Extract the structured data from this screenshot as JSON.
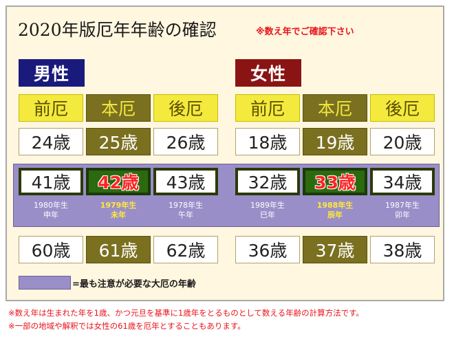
{
  "title": "2020年版厄年年齢の確認",
  "subtitle": "※数え年でご確認下さい",
  "male": {
    "label": "男性",
    "headers": [
      "前厄",
      "本厄",
      "後厄"
    ],
    "rows": [
      [
        "24歳",
        "25歳",
        "26歳"
      ],
      [
        "41歳",
        "42歳",
        "43歳"
      ],
      [
        "60歳",
        "61歳",
        "62歳"
      ]
    ],
    "years": [
      {
        "year": "1980年生",
        "zodiac": "申年"
      },
      {
        "year": "1979年生",
        "zodiac": "未年"
      },
      {
        "year": "1978年生",
        "zodiac": "午年"
      }
    ]
  },
  "female": {
    "label": "女性",
    "headers": [
      "前厄",
      "本厄",
      "後厄"
    ],
    "rows": [
      [
        "18歳",
        "19歳",
        "20歳"
      ],
      [
        "32歳",
        "33歳",
        "34歳"
      ],
      [
        "36歳",
        "37歳",
        "38歳"
      ]
    ],
    "years": [
      {
        "year": "1989年生",
        "zodiac": "巳年"
      },
      {
        "year": "1988年生",
        "zodiac": "辰年"
      },
      {
        "year": "1987年生",
        "zodiac": "卯年"
      }
    ]
  },
  "legend": "=最も注意が必要な大厄の年齢",
  "notes": [
    "※数え年は生まれた年を1歳、かつ元旦を基準に1歳年をとるものとして数える年齢の計算方法です。",
    "※一部の地域や解釈では女性の61歳を厄年とすることもあります。"
  ],
  "colors": {
    "background": "#fff7df",
    "male_label": "#1a1a7c",
    "female_label": "#8a1414",
    "header_yellow": "#f4ea3e",
    "main_olive": "#7a7020",
    "band_purple": "#9a8ec8",
    "accent_red": "#e8141c"
  }
}
